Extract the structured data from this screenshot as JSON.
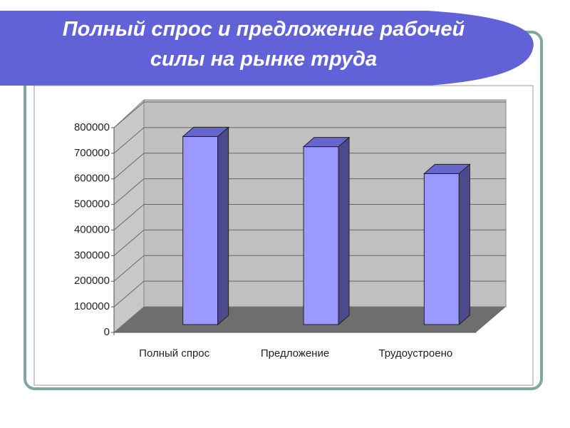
{
  "chart_data": {
    "type": "bar3d",
    "title": "Полный спрос и предложение рабочей силы на рынке труда",
    "categories": [
      "Полный спрос",
      "Предложение",
      "Трудоустроено"
    ],
    "values": [
      735000,
      695000,
      590000
    ],
    "color": "#9999ff",
    "ylim": [
      0,
      800000
    ],
    "yticks": [
      0,
      100000,
      200000,
      300000,
      400000,
      500000,
      600000,
      700000,
      800000
    ],
    "grid": true
  }
}
